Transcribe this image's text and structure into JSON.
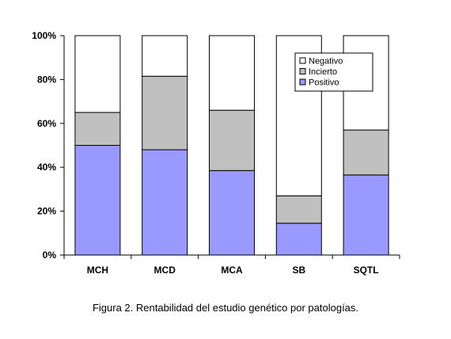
{
  "chart_data": {
    "type": "bar",
    "stacked": true,
    "categories": [
      "MCH",
      "MCD",
      "MCA",
      "SB",
      "SQTL"
    ],
    "series": [
      {
        "name": "Positivo",
        "values": [
          50,
          48,
          38.5,
          14.5,
          36.5
        ],
        "color": "#9999ff"
      },
      {
        "name": "Incierto",
        "values": [
          15,
          33.5,
          27.5,
          12.5,
          20.5
        ],
        "color": "#c0c0c0"
      },
      {
        "name": "Negativo",
        "values": [
          35,
          18.5,
          34,
          73,
          43
        ],
        "color": "#ffffff"
      }
    ],
    "ylim": [
      0,
      100
    ],
    "yticks": [
      "0%",
      "20%",
      "40%",
      "60%",
      "80%",
      "100%"
    ],
    "grid": false,
    "legend_placement": "top-right",
    "legend_order": [
      "Negativo",
      "Incierto",
      "Positivo"
    ]
  },
  "caption": "Figura 2. Rentabilidad del estudio genético por patologías."
}
